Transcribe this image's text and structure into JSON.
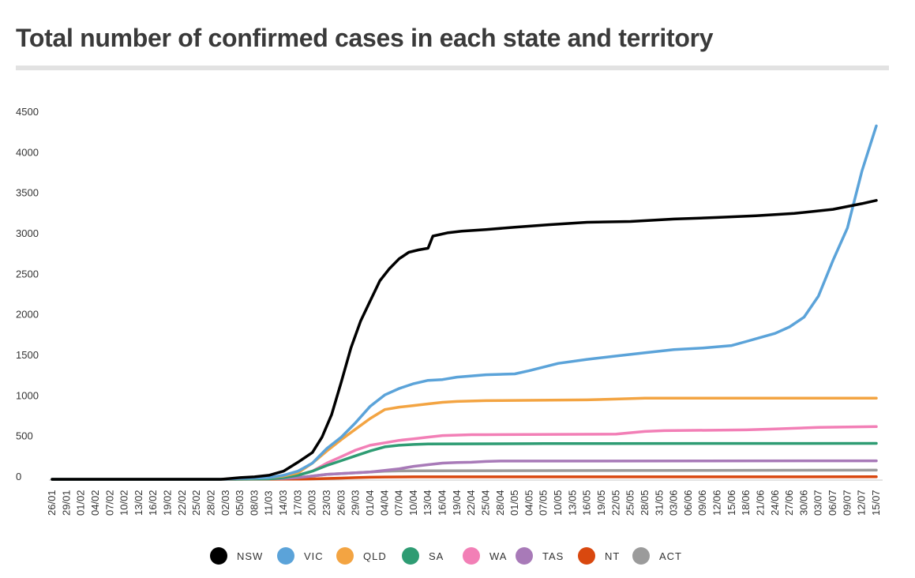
{
  "chart_data": {
    "type": "line",
    "title": "Total number of confirmed cases in each state and territory",
    "xlabel": "",
    "ylabel": "",
    "ylim": [
      0,
      4500
    ],
    "yticks": [
      0,
      500,
      1000,
      1500,
      2000,
      2500,
      3000,
      3500,
      4000,
      4500
    ],
    "x_start": "26/01",
    "x_end": "15/07",
    "xtick_labels": [
      "26/01",
      "29/01",
      "01/02",
      "04/02",
      "07/02",
      "10/02",
      "13/02",
      "16/02",
      "19/02",
      "22/02",
      "25/02",
      "28/02",
      "02/03",
      "05/03",
      "08/03",
      "11/03",
      "14/03",
      "17/03",
      "20/03",
      "23/03",
      "26/03",
      "29/03",
      "01/04",
      "04/04",
      "07/04",
      "10/04",
      "13/04",
      "16/04",
      "19/04",
      "22/04",
      "25/04",
      "28/04",
      "01/05",
      "04/05",
      "07/05",
      "10/05",
      "13/05",
      "16/05",
      "19/05",
      "22/05",
      "25/05",
      "28/05",
      "31/05",
      "03/06",
      "06/06",
      "09/06",
      "12/06",
      "15/06",
      "18/06",
      "21/06",
      "24/06",
      "27/06",
      "30/06",
      "03/07",
      "06/07",
      "09/07",
      "12/07",
      "15/07"
    ],
    "grid": false,
    "legend_position": "bottom",
    "series": [
      {
        "name": "NSW",
        "color": "#000000",
        "points": [
          [
            "26/01",
            0
          ],
          [
            "01/03",
            0
          ],
          [
            "02/03",
            5
          ],
          [
            "05/03",
            20
          ],
          [
            "08/03",
            30
          ],
          [
            "11/03",
            50
          ],
          [
            "14/03",
            100
          ],
          [
            "17/03",
            210
          ],
          [
            "20/03",
            330
          ],
          [
            "22/03",
            520
          ],
          [
            "24/03",
            800
          ],
          [
            "26/03",
            1200
          ],
          [
            "28/03",
            1620
          ],
          [
            "30/03",
            1950
          ],
          [
            "01/04",
            2200
          ],
          [
            "03/04",
            2450
          ],
          [
            "05/04",
            2600
          ],
          [
            "07/04",
            2720
          ],
          [
            "09/04",
            2800
          ],
          [
            "11/04",
            2830
          ],
          [
            "13/04",
            2850
          ],
          [
            "14/04",
            3000
          ],
          [
            "17/04",
            3040
          ],
          [
            "20/04",
            3060
          ],
          [
            "25/04",
            3080
          ],
          [
            "01/05",
            3110
          ],
          [
            "08/05",
            3140
          ],
          [
            "16/05",
            3170
          ],
          [
            "25/05",
            3180
          ],
          [
            "03/06",
            3210
          ],
          [
            "12/06",
            3230
          ],
          [
            "20/06",
            3250
          ],
          [
            "28/06",
            3280
          ],
          [
            "06/07",
            3330
          ],
          [
            "12/07",
            3400
          ],
          [
            "15/07",
            3440
          ]
        ]
      },
      {
        "name": "VIC",
        "color": "#5ba3d9",
        "points": [
          [
            "26/01",
            0
          ],
          [
            "01/03",
            0
          ],
          [
            "05/03",
            10
          ],
          [
            "11/03",
            20
          ],
          [
            "14/03",
            50
          ],
          [
            "17/03",
            100
          ],
          [
            "20/03",
            200
          ],
          [
            "23/03",
            380
          ],
          [
            "26/03",
            520
          ],
          [
            "29/03",
            700
          ],
          [
            "01/04",
            900
          ],
          [
            "04/04",
            1040
          ],
          [
            "07/04",
            1120
          ],
          [
            "10/04",
            1180
          ],
          [
            "13/04",
            1220
          ],
          [
            "16/04",
            1230
          ],
          [
            "19/04",
            1260
          ],
          [
            "25/04",
            1290
          ],
          [
            "01/05",
            1300
          ],
          [
            "04/05",
            1340
          ],
          [
            "10/05",
            1430
          ],
          [
            "16/05",
            1480
          ],
          [
            "22/05",
            1520
          ],
          [
            "28/05",
            1560
          ],
          [
            "03/06",
            1600
          ],
          [
            "09/06",
            1620
          ],
          [
            "15/06",
            1650
          ],
          [
            "18/06",
            1700
          ],
          [
            "21/06",
            1750
          ],
          [
            "24/06",
            1800
          ],
          [
            "27/06",
            1880
          ],
          [
            "30/06",
            2000
          ],
          [
            "03/07",
            2260
          ],
          [
            "06/07",
            2700
          ],
          [
            "09/07",
            3100
          ],
          [
            "12/07",
            3800
          ],
          [
            "15/07",
            4360
          ]
        ]
      },
      {
        "name": "QLD",
        "color": "#f3a442",
        "points": [
          [
            "26/01",
            0
          ],
          [
            "01/03",
            0
          ],
          [
            "05/03",
            10
          ],
          [
            "11/03",
            20
          ],
          [
            "14/03",
            40
          ],
          [
            "17/03",
            80
          ],
          [
            "20/03",
            200
          ],
          [
            "23/03",
            350
          ],
          [
            "26/03",
            490
          ],
          [
            "29/03",
            620
          ],
          [
            "01/04",
            750
          ],
          [
            "04/04",
            860
          ],
          [
            "07/04",
            890
          ],
          [
            "10/04",
            910
          ],
          [
            "13/04",
            930
          ],
          [
            "16/04",
            950
          ],
          [
            "19/04",
            960
          ],
          [
            "25/04",
            970
          ],
          [
            "16/05",
            980
          ],
          [
            "22/05",
            990
          ],
          [
            "28/05",
            1000
          ],
          [
            "15/07",
            1000
          ]
        ]
      },
      {
        "name": "SA",
        "color": "#2e9c73",
        "points": [
          [
            "26/01",
            0
          ],
          [
            "01/03",
            0
          ],
          [
            "11/03",
            5
          ],
          [
            "14/03",
            20
          ],
          [
            "17/03",
            50
          ],
          [
            "20/03",
            100
          ],
          [
            "23/03",
            170
          ],
          [
            "26/03",
            230
          ],
          [
            "29/03",
            290
          ],
          [
            "01/04",
            350
          ],
          [
            "04/04",
            400
          ],
          [
            "07/04",
            420
          ],
          [
            "10/04",
            430
          ],
          [
            "13/04",
            435
          ],
          [
            "04/05",
            439
          ],
          [
            "07/05",
            440
          ],
          [
            "15/07",
            443
          ]
        ]
      },
      {
        "name": "WA",
        "color": "#f27fb6",
        "points": [
          [
            "26/01",
            0
          ],
          [
            "01/03",
            0
          ],
          [
            "05/03",
            5
          ],
          [
            "11/03",
            10
          ],
          [
            "14/03",
            20
          ],
          [
            "17/03",
            50
          ],
          [
            "20/03",
            100
          ],
          [
            "23/03",
            200
          ],
          [
            "26/03",
            280
          ],
          [
            "29/03",
            360
          ],
          [
            "01/04",
            420
          ],
          [
            "04/04",
            450
          ],
          [
            "07/04",
            480
          ],
          [
            "10/04",
            500
          ],
          [
            "13/04",
            520
          ],
          [
            "16/04",
            540
          ],
          [
            "22/04",
            550
          ],
          [
            "25/04",
            550
          ],
          [
            "22/05",
            557
          ],
          [
            "28/05",
            590
          ],
          [
            "01/06",
            600
          ],
          [
            "18/06",
            610
          ],
          [
            "24/06",
            620
          ],
          [
            "03/07",
            640
          ],
          [
            "15/07",
            650
          ]
        ]
      },
      {
        "name": "TAS",
        "color": "#a87ab8",
        "points": [
          [
            "26/01",
            0
          ],
          [
            "01/03",
            0
          ],
          [
            "05/03",
            2
          ],
          [
            "14/03",
            10
          ],
          [
            "17/03",
            20
          ],
          [
            "20/03",
            40
          ],
          [
            "23/03",
            60
          ],
          [
            "26/03",
            70
          ],
          [
            "29/03",
            80
          ],
          [
            "01/04",
            90
          ],
          [
            "04/04",
            110
          ],
          [
            "07/04",
            130
          ],
          [
            "10/04",
            160
          ],
          [
            "13/04",
            180
          ],
          [
            "16/04",
            200
          ],
          [
            "19/04",
            207
          ],
          [
            "22/04",
            210
          ],
          [
            "25/04",
            220
          ],
          [
            "28/04",
            225
          ],
          [
            "15/07",
            228
          ]
        ]
      },
      {
        "name": "NT",
        "color": "#d9480f",
        "points": [
          [
            "26/01",
            0
          ],
          [
            "01/03",
            0
          ],
          [
            "17/03",
            2
          ],
          [
            "20/03",
            5
          ],
          [
            "23/03",
            10
          ],
          [
            "26/03",
            15
          ],
          [
            "29/03",
            20
          ],
          [
            "01/04",
            25
          ],
          [
            "04/04",
            28
          ],
          [
            "07/04",
            29
          ],
          [
            "10/04",
            30
          ],
          [
            "15/07",
            31
          ]
        ]
      },
      {
        "name": "ACT",
        "color": "#9b9b9b",
        "points": [
          [
            "26/01",
            0
          ],
          [
            "01/03",
            0
          ],
          [
            "14/03",
            5
          ],
          [
            "17/03",
            20
          ],
          [
            "20/03",
            40
          ],
          [
            "23/03",
            60
          ],
          [
            "26/03",
            70
          ],
          [
            "29/03",
            80
          ],
          [
            "01/04",
            90
          ],
          [
            "04/04",
            100
          ],
          [
            "07/04",
            103
          ],
          [
            "10/04",
            104
          ],
          [
            "15/07",
            113
          ]
        ]
      }
    ]
  }
}
